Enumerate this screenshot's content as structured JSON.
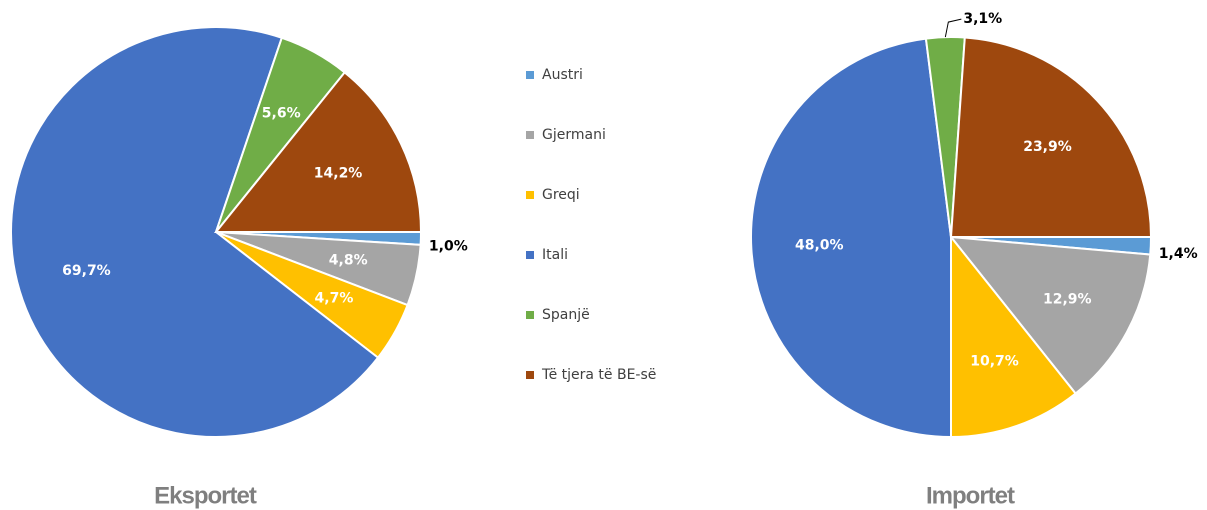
{
  "legend": {
    "labels": [
      "Austri",
      "Gjermani",
      "Greqi",
      "Itali",
      "Spanjë",
      "Të tjera të BE-së"
    ],
    "colors": [
      "#5b9bd5",
      "#a5a5a5",
      "#ffc000",
      "#4472c4",
      "#70ad47",
      "#9e480e"
    ]
  },
  "chart_data": [
    {
      "type": "pie",
      "title": "Eksportet",
      "values": [
        1.0,
        4.8,
        4.7,
        69.7,
        5.6,
        14.2
      ],
      "value_labels": [
        "1,0%",
        "4,8%",
        "4,7%",
        "69,7%",
        "5,6%",
        "14,2%"
      ]
    },
    {
      "type": "pie",
      "title": "Importet",
      "values": [
        1.4,
        12.9,
        10.7,
        48.0,
        3.1,
        23.9
      ],
      "value_labels": [
        "1,4%",
        "12,9%",
        "10,7%",
        "48,0%",
        "3,1%",
        "23,9%"
      ]
    }
  ]
}
